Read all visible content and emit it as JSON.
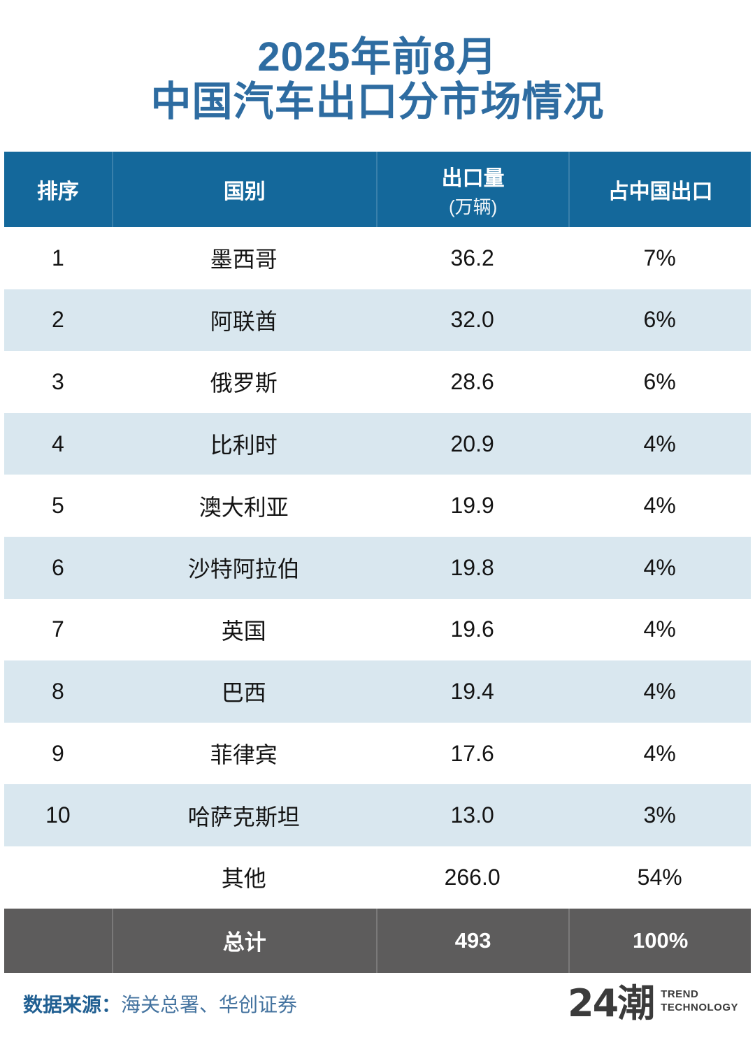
{
  "title": {
    "line1": "2025年前8月",
    "line2": "中国汽车出口分市场情况"
  },
  "table": {
    "headers": {
      "rank": "排序",
      "country": "国别",
      "volume": "出口量",
      "volume_unit": "(万辆)",
      "share": "占中国出口"
    },
    "rows": [
      {
        "rank": "1",
        "country": "墨西哥",
        "volume": "36.2",
        "share": "7%"
      },
      {
        "rank": "2",
        "country": "阿联酋",
        "volume": "32.0",
        "share": "6%"
      },
      {
        "rank": "3",
        "country": "俄罗斯",
        "volume": "28.6",
        "share": "6%"
      },
      {
        "rank": "4",
        "country": "比利时",
        "volume": "20.9",
        "share": "4%"
      },
      {
        "rank": "5",
        "country": "澳大利亚",
        "volume": "19.9",
        "share": "4%"
      },
      {
        "rank": "6",
        "country": "沙特阿拉伯",
        "volume": "19.8",
        "share": "4%"
      },
      {
        "rank": "7",
        "country": "英国",
        "volume": "19.6",
        "share": "4%"
      },
      {
        "rank": "8",
        "country": "巴西",
        "volume": "19.4",
        "share": "4%"
      },
      {
        "rank": "9",
        "country": "菲律宾",
        "volume": "17.6",
        "share": "4%"
      },
      {
        "rank": "10",
        "country": "哈萨克斯坦",
        "volume": "13.0",
        "share": "3%"
      },
      {
        "rank": "",
        "country": "其他",
        "volume": "266.0",
        "share": "54%"
      }
    ],
    "total": {
      "rank": "",
      "label": "总计",
      "volume": "493",
      "share": "100%"
    }
  },
  "footer": {
    "source_label": "数据来源：",
    "source_value": "海关总署、华创证券",
    "logo_text": "24潮",
    "logo_sub1": "TREND",
    "logo_sub2": "TECHNOLOGY"
  },
  "colors": {
    "title_blue": "#2e6ca1",
    "header_bg": "#14689b",
    "row_alt_bg": "#d9e7ef",
    "total_bg": "#5d5c5c",
    "source_label_blue": "#205f92",
    "source_value_blue": "#44739f",
    "logo_gray": "#3b3b3b"
  },
  "chart_data": {
    "type": "table",
    "title": "2025年前8月中国汽车出口分市场情况",
    "columns": [
      "排序",
      "国别",
      "出口量(万辆)",
      "占中国出口"
    ],
    "rows": [
      [
        1,
        "墨西哥",
        36.2,
        "7%"
      ],
      [
        2,
        "阿联酋",
        32.0,
        "6%"
      ],
      [
        3,
        "俄罗斯",
        28.6,
        "6%"
      ],
      [
        4,
        "比利时",
        20.9,
        "4%"
      ],
      [
        5,
        "澳大利亚",
        19.9,
        "4%"
      ],
      [
        6,
        "沙特阿拉伯",
        19.8,
        "4%"
      ],
      [
        7,
        "英国",
        19.6,
        "4%"
      ],
      [
        8,
        "巴西",
        19.4,
        "4%"
      ],
      [
        9,
        "菲律宾",
        17.6,
        "4%"
      ],
      [
        10,
        "哈萨克斯坦",
        13.0,
        "3%"
      ],
      [
        null,
        "其他",
        266.0,
        "54%"
      ]
    ],
    "total_row": [
      "",
      "总计",
      493,
      "100%"
    ],
    "source": "海关总署、华创证券"
  }
}
